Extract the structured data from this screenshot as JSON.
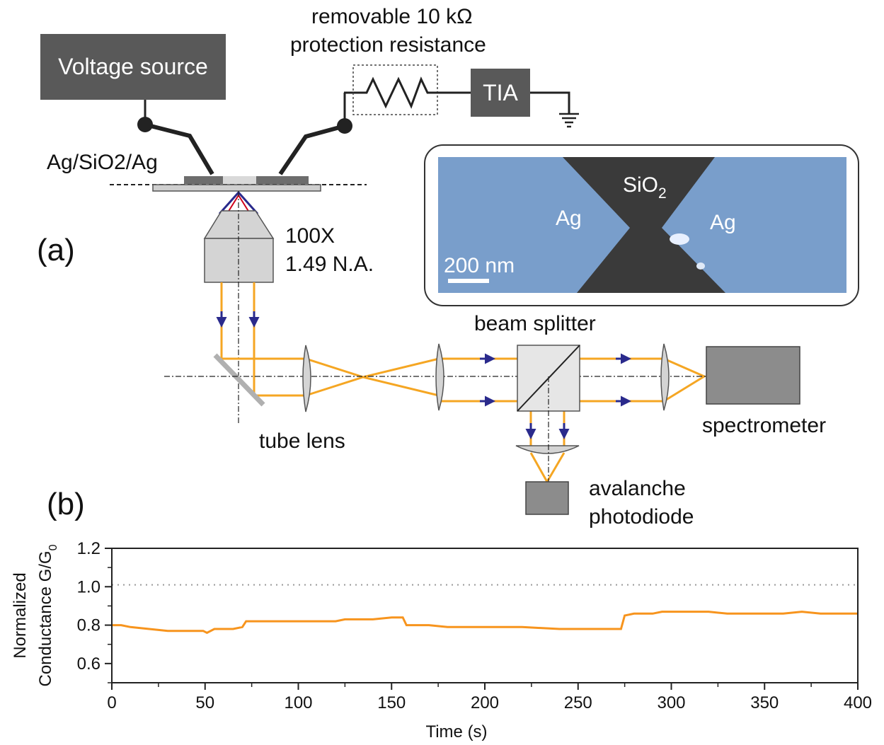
{
  "panel_a": {
    "label": "(a)",
    "voltage_source": "Voltage source",
    "resistor_label_line1": "removable 10 kΩ",
    "resistor_label_line2": "protection resistance",
    "tia": "TIA",
    "sample": "Ag/SiO2/Ag",
    "objective_line1": "100X",
    "objective_line2": "1.49 N.A.",
    "tube_lens": "tube lens",
    "beam_splitter": "beam splitter",
    "spectrometer": "spectrometer",
    "apd_line1": "avalanche",
    "apd_line2": "photodiode",
    "inset": {
      "left_label": "Ag",
      "right_label": "Ag",
      "center_label": "SiO",
      "center_sub": "2",
      "scale_bar": "200 nm"
    }
  },
  "panel_b": {
    "label": "(b)"
  },
  "colors": {
    "box_gray": "#595959",
    "beam_orange": "#f5a623",
    "arrow_blue": "#2a2a8c",
    "silver_blue": "#7ea4cf",
    "trace_orange": "#f7941d"
  },
  "chart_data": {
    "type": "line",
    "xlabel": "Time (s)",
    "ylabel_line1": "Normalized",
    "ylabel_line2": "Conductance G/G",
    "ylabel_sub": "0",
    "xlim": [
      0,
      400
    ],
    "ylim": [
      0.5,
      1.2
    ],
    "xticks": [
      "0",
      "50",
      "100",
      "150",
      "200",
      "250",
      "300",
      "350",
      "400"
    ],
    "yticks": [
      "0.6",
      "0.8",
      "1.0",
      "1.2"
    ],
    "reference_line": 1.01,
    "series": [
      {
        "x": [
          0,
          5,
          10,
          20,
          30,
          40,
          49,
          51,
          55,
          65,
          70,
          72,
          75,
          85,
          100,
          110,
          120,
          125,
          130,
          140,
          150,
          156,
          158,
          160,
          170,
          180,
          200,
          220,
          240,
          255,
          265,
          273,
          275,
          280,
          290,
          295,
          300,
          310,
          320,
          330,
          340,
          350,
          360,
          370,
          380,
          390,
          400
        ],
        "y": [
          0.8,
          0.8,
          0.79,
          0.78,
          0.77,
          0.77,
          0.77,
          0.76,
          0.78,
          0.78,
          0.79,
          0.82,
          0.82,
          0.82,
          0.82,
          0.82,
          0.82,
          0.83,
          0.83,
          0.83,
          0.84,
          0.84,
          0.8,
          0.8,
          0.8,
          0.79,
          0.79,
          0.79,
          0.78,
          0.78,
          0.78,
          0.78,
          0.85,
          0.86,
          0.86,
          0.87,
          0.87,
          0.87,
          0.87,
          0.86,
          0.86,
          0.86,
          0.86,
          0.87,
          0.86,
          0.86,
          0.86
        ]
      }
    ]
  }
}
